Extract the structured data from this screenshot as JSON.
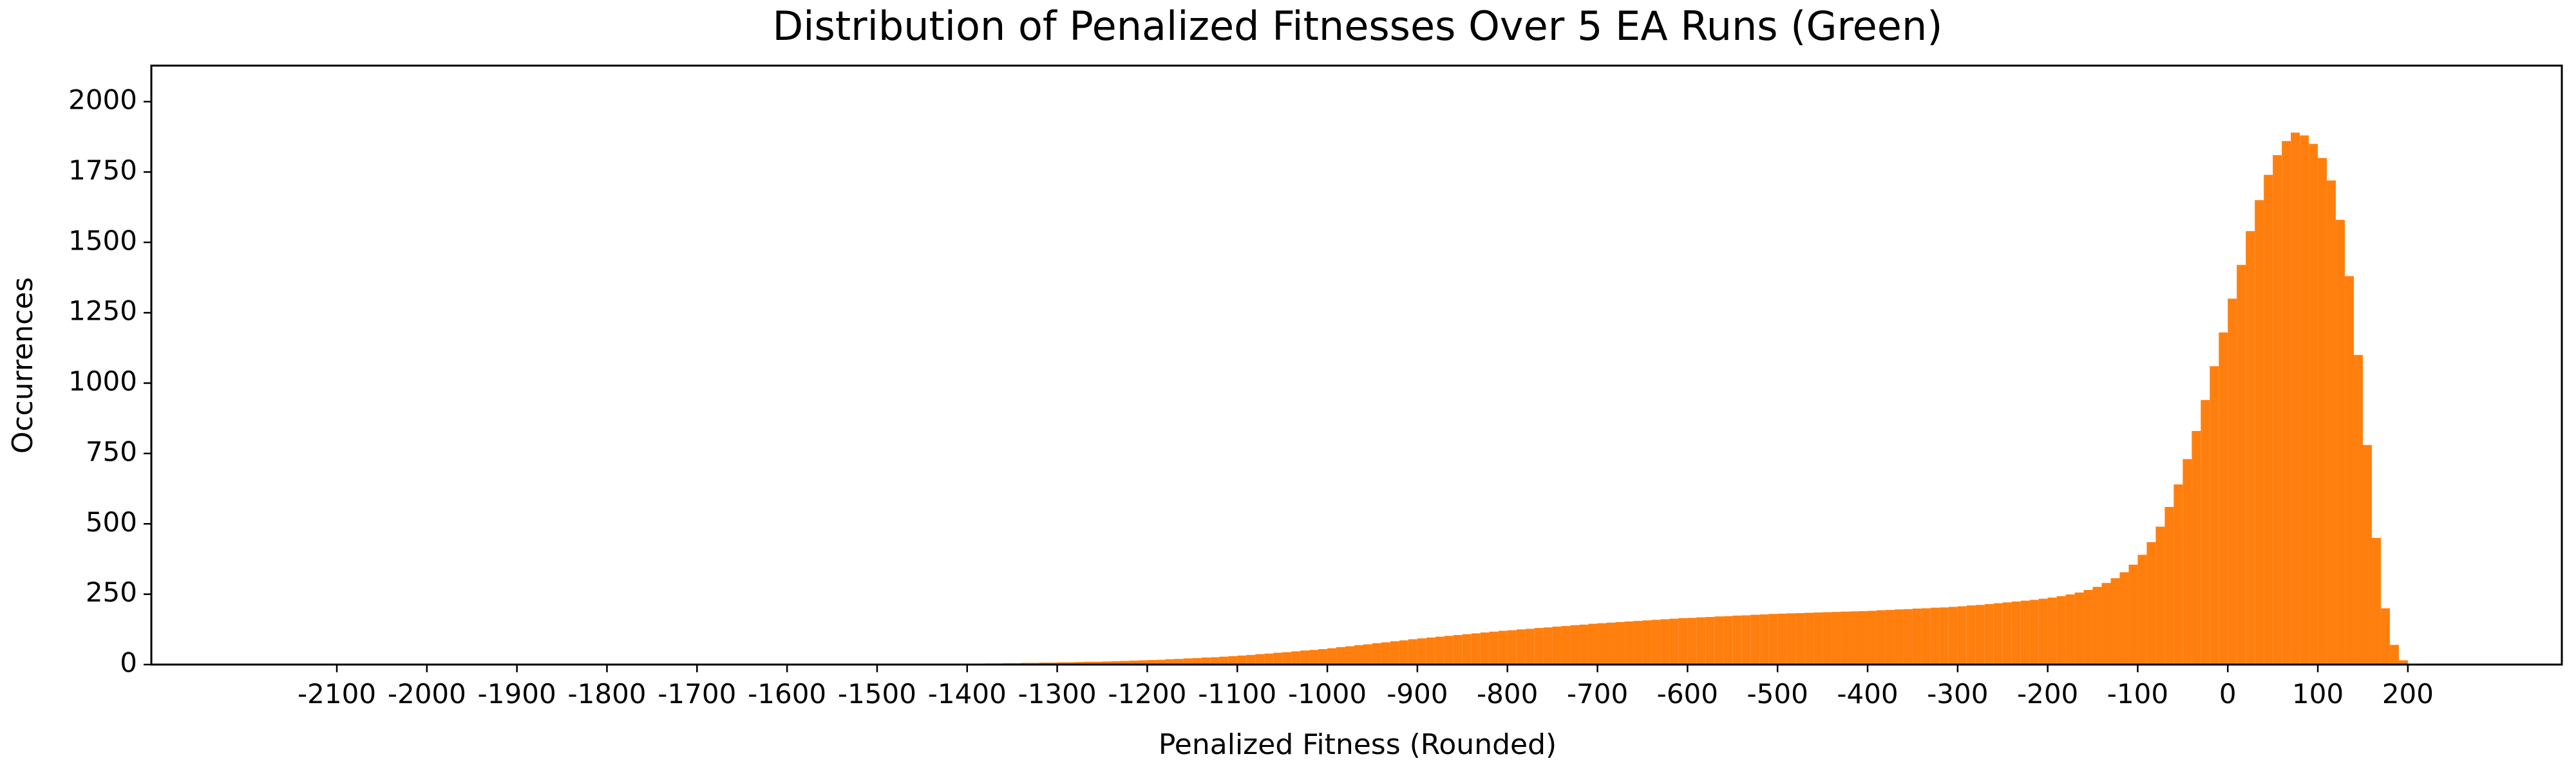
{
  "chart_data": {
    "type": "histogram",
    "title": "Distribution of Penalized Fitnesses Over 5 EA Runs (Green)",
    "xlabel": "Penalized Fitness (Rounded)",
    "ylabel": "Occurrences",
    "color": "#ff7f0e",
    "bins": [
      -1400,
      -1390,
      -1380,
      -1370,
      -1360,
      -1350,
      -1340,
      -1330,
      -1320,
      -1310,
      -1300,
      -1290,
      -1280,
      -1270,
      -1260,
      -1250,
      -1240,
      -1230,
      -1220,
      -1210,
      -1200,
      -1190,
      -1180,
      -1170,
      -1160,
      -1150,
      -1140,
      -1130,
      -1120,
      -1110,
      -1100,
      -1090,
      -1080,
      -1070,
      -1060,
      -1050,
      -1040,
      -1030,
      -1020,
      -1010,
      -1000,
      -990,
      -980,
      -970,
      -960,
      -950,
      -940,
      -930,
      -920,
      -910,
      -900,
      -890,
      -880,
      -870,
      -860,
      -850,
      -840,
      -830,
      -820,
      -810,
      -800,
      -790,
      -780,
      -770,
      -760,
      -750,
      -740,
      -730,
      -720,
      -710,
      -700,
      -690,
      -680,
      -670,
      -660,
      -650,
      -640,
      -630,
      -620,
      -610,
      -600,
      -590,
      -580,
      -570,
      -560,
      -550,
      -540,
      -530,
      -520,
      -510,
      -500,
      -490,
      -480,
      -470,
      -460,
      -450,
      -440,
      -430,
      -420,
      -410,
      -400,
      -390,
      -380,
      -370,
      -360,
      -350,
      -340,
      -330,
      -320,
      -310,
      -300,
      -290,
      -280,
      -270,
      -260,
      -250,
      -240,
      -230,
      -220,
      -210,
      -200,
      -190,
      -180,
      -170,
      -160,
      -150,
      -140,
      -130,
      -120,
      -110,
      -100,
      -90,
      -80,
      -70,
      -60,
      -50,
      -40,
      -30,
      -20,
      -10,
      0,
      10,
      20,
      30,
      40,
      50,
      60,
      70,
      80,
      90,
      100,
      110,
      120,
      130,
      140,
      150,
      160,
      170,
      180,
      190,
      200,
      210
    ],
    "values": [
      3,
      3,
      4,
      4,
      5,
      5,
      6,
      6,
      7,
      7,
      8,
      8,
      9,
      10,
      10,
      11,
      12,
      13,
      14,
      15,
      16,
      17,
      19,
      20,
      22,
      23,
      25,
      26,
      28,
      30,
      32,
      34,
      37,
      39,
      42,
      44,
      47,
      50,
      52,
      55,
      58,
      62,
      65,
      69,
      72,
      76,
      79,
      83,
      86,
      90,
      93,
      96,
      99,
      102,
      105,
      108,
      111,
      114,
      117,
      120,
      122,
      125,
      127,
      130,
      132,
      135,
      137,
      140,
      142,
      145,
      147,
      149,
      151,
      153,
      155,
      157,
      159,
      161,
      163,
      165,
      166,
      168,
      169,
      171,
      172,
      174,
      175,
      177,
      178,
      180,
      181,
      182,
      183,
      184,
      185,
      186,
      187,
      188,
      189,
      190,
      191,
      193,
      194,
      196,
      197,
      199,
      200,
      202,
      203,
      205,
      207,
      210,
      212,
      215,
      218,
      221,
      224,
      227,
      230,
      234,
      238,
      243,
      249,
      256,
      265,
      276,
      290,
      307,
      328,
      355,
      390,
      435,
      490,
      560,
      640,
      730,
      830,
      940,
      1060,
      1180,
      1300,
      1420,
      1540,
      1650,
      1740,
      1810,
      1860,
      1890,
      1880,
      1850,
      1800,
      1720,
      1580,
      1380,
      1100,
      780,
      450,
      200,
      70,
      15,
      3
    ],
    "xlim": [
      -2306,
      371
    ],
    "ylim": [
      0,
      2128
    ],
    "xticks": [
      -2100,
      -2000,
      -1900,
      -1800,
      -1700,
      -1600,
      -1500,
      -1400,
      -1300,
      -1200,
      -1100,
      -1000,
      -900,
      -800,
      -700,
      -600,
      -500,
      -400,
      -300,
      -200,
      -100,
      0,
      100,
      200
    ],
    "yticks": [
      0,
      250,
      500,
      750,
      1000,
      1250,
      1500,
      1750,
      2000
    ]
  }
}
